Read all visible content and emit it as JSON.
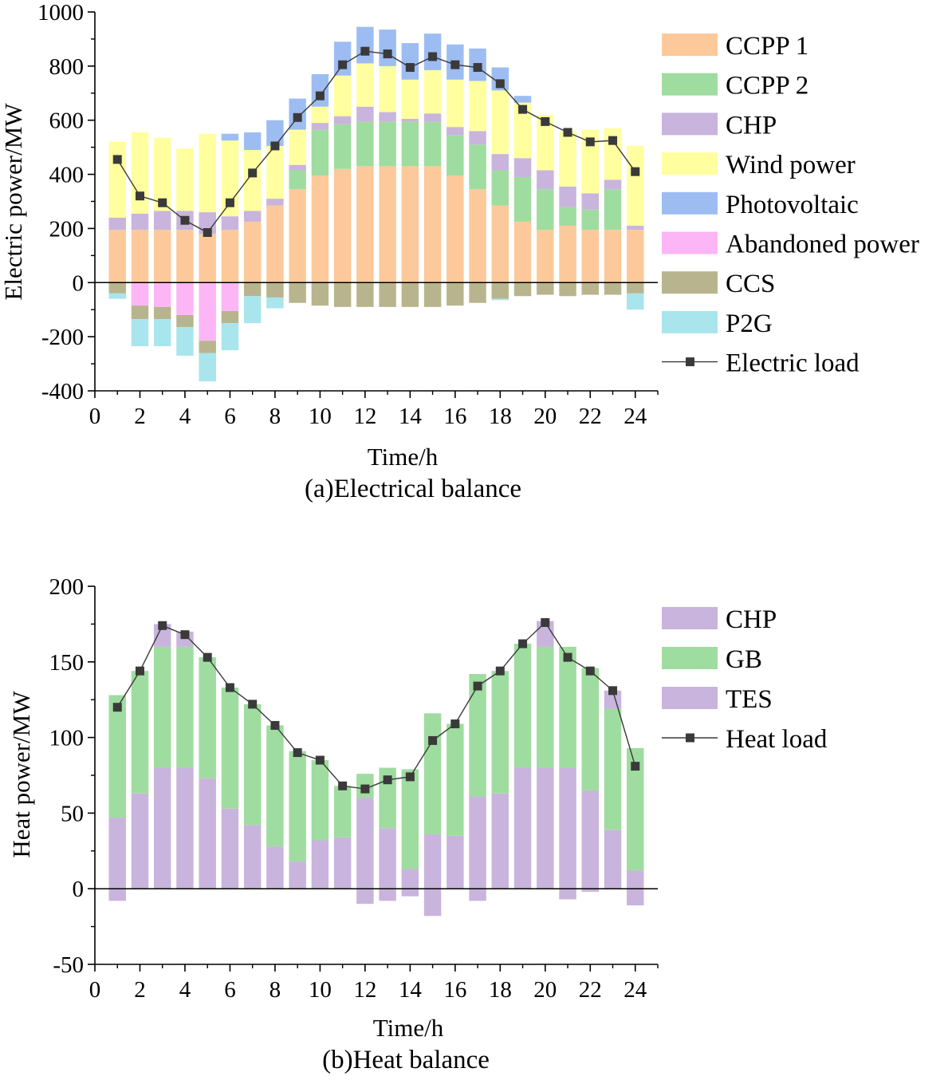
{
  "colors": {
    "CCPP 1": "#fdc99a",
    "CCPP 2": "#9fdca0",
    "CHP": "#c9b4dd",
    "Wind power": "#ffff9f",
    "Photovoltaic": "#9dbdf2",
    "Abandoned power": "#fcb6f6",
    "CCS": "#b8b58e",
    "P2G": "#a9e5ec",
    "GB": "#9fdca0",
    "TES": "#c9b4dd",
    "load": "#3a3a3a"
  },
  "chart_data": [
    {
      "type": "bar",
      "stacked": true,
      "caption": "(a)Electrical balance",
      "xlabel": "Time/h",
      "ylabel": "Electric power/MW",
      "xlim": [
        0,
        25
      ],
      "xticks": [
        0,
        2,
        4,
        6,
        8,
        10,
        12,
        14,
        16,
        18,
        20,
        22,
        24
      ],
      "ylim": [
        -400,
        1000
      ],
      "yticks": [
        -400,
        -200,
        0,
        200,
        400,
        600,
        800,
        1000
      ],
      "legend_position": "right",
      "x": [
        1,
        2,
        3,
        4,
        5,
        6,
        7,
        8,
        9,
        10,
        11,
        12,
        13,
        14,
        15,
        16,
        17,
        18,
        19,
        20,
        21,
        22,
        23,
        24
      ],
      "series": [
        {
          "name": "CCPP 1",
          "values": [
            195,
            195,
            195,
            195,
            180,
            195,
            225,
            285,
            345,
            395,
            420,
            430,
            430,
            430,
            430,
            395,
            345,
            285,
            225,
            195,
            210,
            195,
            195,
            195
          ]
        },
        {
          "name": "CCPP 2",
          "values": [
            0,
            0,
            0,
            0,
            0,
            0,
            0,
            0,
            70,
            170,
            165,
            165,
            165,
            165,
            165,
            150,
            165,
            130,
            165,
            150,
            70,
            75,
            150,
            0
          ]
        },
        {
          "name": "CHP",
          "values": [
            45,
            60,
            70,
            70,
            80,
            50,
            40,
            25,
            20,
            25,
            30,
            55,
            35,
            10,
            30,
            30,
            50,
            60,
            70,
            70,
            75,
            60,
            35,
            15
          ]
        },
        {
          "name": "Wind power",
          "values": [
            280,
            300,
            270,
            230,
            290,
            280,
            225,
            195,
            130,
            60,
            150,
            160,
            170,
            145,
            160,
            175,
            185,
            235,
            205,
            205,
            205,
            235,
            190,
            295
          ]
        },
        {
          "name": "Photovoltaic",
          "values": [
            0,
            0,
            0,
            0,
            0,
            25,
            65,
            95,
            115,
            120,
            125,
            135,
            135,
            135,
            135,
            130,
            120,
            85,
            25,
            0,
            0,
            0,
            0,
            0
          ]
        },
        {
          "name": "Abandoned power",
          "values": [
            0,
            -85,
            -90,
            -120,
            -215,
            -105,
            0,
            0,
            0,
            0,
            0,
            0,
            0,
            0,
            0,
            0,
            0,
            0,
            0,
            0,
            0,
            0,
            0,
            0
          ]
        },
        {
          "name": "CCS",
          "values": [
            -40,
            -50,
            -45,
            -45,
            -45,
            -45,
            -50,
            -55,
            -75,
            -85,
            -90,
            -90,
            -90,
            -90,
            -90,
            -85,
            -75,
            -60,
            -50,
            -45,
            -50,
            -45,
            -45,
            -40
          ]
        },
        {
          "name": "P2G",
          "values": [
            -20,
            -100,
            -100,
            -105,
            -105,
            -100,
            -100,
            -40,
            0,
            0,
            0,
            0,
            0,
            0,
            0,
            0,
            0,
            -5,
            0,
            0,
            0,
            0,
            0,
            -60
          ]
        }
      ],
      "line": {
        "name": "Electric load",
        "values": [
          455,
          320,
          295,
          230,
          185,
          295,
          405,
          505,
          610,
          690,
          805,
          855,
          845,
          795,
          835,
          805,
          795,
          735,
          640,
          595,
          555,
          520,
          525,
          410
        ]
      }
    },
    {
      "type": "bar",
      "stacked": true,
      "caption": "(b)Heat balance",
      "xlabel": "Time/h",
      "ylabel": "Heat power/MW",
      "xlim": [
        0,
        25
      ],
      "xticks": [
        0,
        2,
        4,
        6,
        8,
        10,
        12,
        14,
        16,
        18,
        20,
        22,
        24
      ],
      "ylim": [
        -50,
        200
      ],
      "yticks": [
        -50,
        0,
        50,
        100,
        150,
        200
      ],
      "legend_position": "right",
      "x": [
        1,
        2,
        3,
        4,
        5,
        6,
        7,
        8,
        9,
        10,
        11,
        12,
        13,
        14,
        15,
        16,
        17,
        18,
        19,
        20,
        21,
        22,
        23,
        24
      ],
      "series": [
        {
          "name": "CHP",
          "values": [
            47,
            63,
            80,
            80,
            73,
            53,
            42,
            28,
            18,
            32,
            34,
            60,
            40,
            13,
            36,
            35,
            61,
            63,
            80,
            80,
            80,
            65,
            39,
            12
          ]
        },
        {
          "name": "GB",
          "values": [
            81,
            81,
            80,
            80,
            80,
            80,
            80,
            80,
            73,
            53,
            34,
            16,
            40,
            66,
            80,
            74,
            81,
            81,
            82,
            80,
            80,
            81,
            80,
            81
          ]
        },
        {
          "name": "TES",
          "values": [
            -8,
            0,
            15,
            10,
            0,
            0,
            0,
            0,
            0,
            0,
            0,
            -10,
            -8,
            -5,
            -18,
            0,
            -8,
            0,
            0,
            17,
            -7,
            -2,
            12,
            -11
          ]
        }
      ],
      "line": {
        "name": "Heat load",
        "values": [
          120,
          144,
          174,
          168,
          153,
          133,
          122,
          108,
          90,
          85,
          68,
          66,
          72,
          74,
          98,
          109,
          134,
          144,
          162,
          176,
          153,
          144,
          131,
          81
        ]
      }
    }
  ]
}
